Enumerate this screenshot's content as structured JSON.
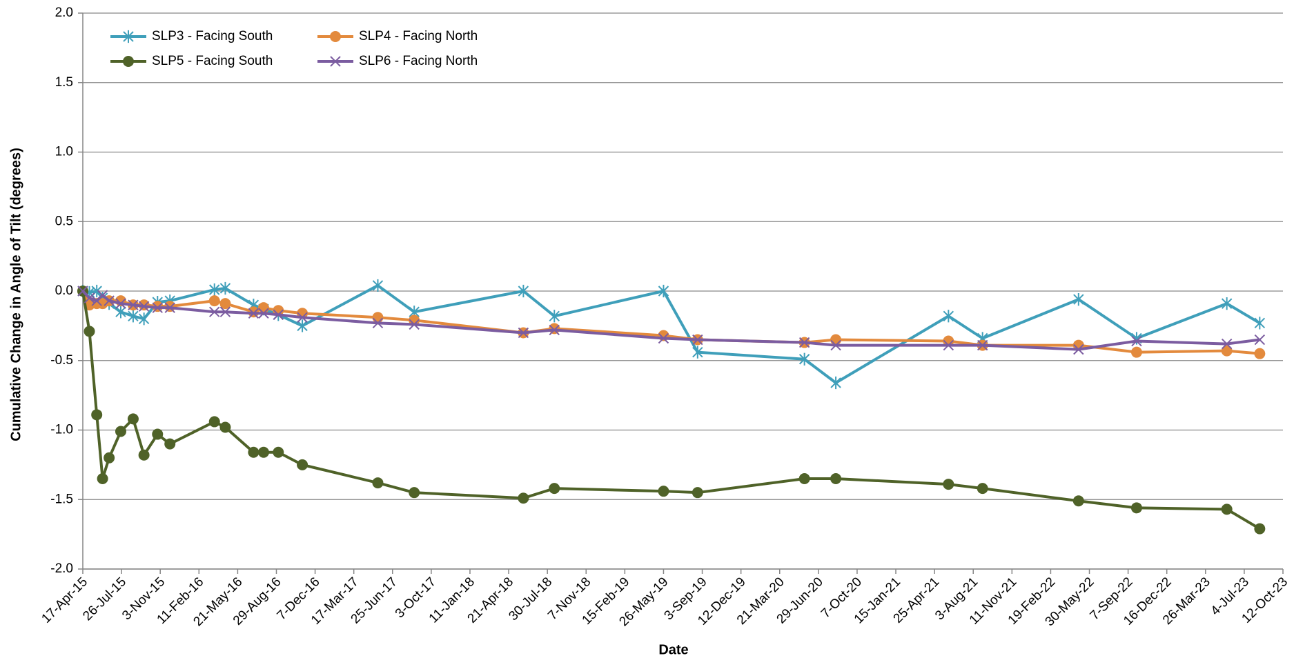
{
  "chart_data": {
    "type": "line",
    "xlabel": "Date",
    "ylabel": "Cumulative Change in Angle of Tilt (degrees)",
    "x": [
      "2015-04-17",
      "2015-05-04",
      "2015-05-23",
      "2015-06-07",
      "2015-06-24",
      "2015-07-24",
      "2015-08-25",
      "2015-09-22",
      "2015-10-27",
      "2015-11-28",
      "2016-03-22",
      "2016-04-19",
      "2016-07-01",
      "2016-07-27",
      "2016-09-03",
      "2016-11-04",
      "2017-05-18",
      "2017-08-20",
      "2018-05-29",
      "2018-08-17",
      "2019-05-26",
      "2019-08-22",
      "2020-05-24",
      "2020-08-13",
      "2021-05-31",
      "2021-08-27",
      "2022-05-02",
      "2022-09-29",
      "2023-05-20",
      "2023-08-13"
    ],
    "series": [
      {
        "name": "SLP3 - Facing South",
        "color": "#3f9fba",
        "marker": "star",
        "values": [
          0.0,
          -0.01,
          0.0,
          -0.05,
          -0.09,
          -0.15,
          -0.18,
          -0.2,
          -0.08,
          -0.07,
          0.01,
          0.02,
          -0.1,
          -0.13,
          -0.17,
          -0.25,
          0.04,
          -0.15,
          0.0,
          -0.18,
          0.0,
          -0.44,
          -0.49,
          -0.66,
          -0.18,
          -0.34,
          -0.06,
          -0.34,
          -0.09,
          -0.23
        ]
      },
      {
        "name": "SLP4 - Facing North",
        "color": "#e38a3d",
        "marker": "circle",
        "values": [
          0.0,
          -0.1,
          -0.09,
          -0.09,
          -0.07,
          -0.07,
          -0.1,
          -0.1,
          -0.11,
          -0.11,
          -0.07,
          -0.09,
          -0.15,
          -0.12,
          -0.14,
          -0.16,
          -0.19,
          -0.21,
          -0.3,
          -0.27,
          -0.32,
          -0.35,
          -0.37,
          -0.35,
          -0.36,
          -0.39,
          -0.39,
          -0.44,
          -0.43,
          -0.45
        ]
      },
      {
        "name": "SLP5 - Facing South",
        "color": "#4f6228",
        "marker": "circle",
        "values": [
          0.0,
          -0.29,
          -0.89,
          -1.35,
          -1.2,
          -1.01,
          -0.92,
          -1.18,
          -1.03,
          -1.1,
          -0.94,
          -0.98,
          -1.16,
          -1.16,
          -1.16,
          -1.25,
          -1.38,
          -1.45,
          -1.49,
          -1.42,
          -1.44,
          -1.45,
          -1.35,
          -1.35,
          -1.39,
          -1.42,
          -1.51,
          -1.56,
          -1.57,
          -1.71
        ]
      },
      {
        "name": "SLP6 - Facing North",
        "color": "#7b5ca0",
        "marker": "x",
        "values": [
          0.0,
          -0.05,
          -0.07,
          -0.03,
          -0.07,
          -0.09,
          -0.1,
          -0.11,
          -0.12,
          -0.12,
          -0.15,
          -0.15,
          -0.16,
          -0.16,
          -0.17,
          -0.19,
          -0.23,
          -0.24,
          -0.3,
          -0.28,
          -0.34,
          -0.35,
          -0.37,
          -0.39,
          -0.39,
          -0.39,
          -0.42,
          -0.36,
          -0.38,
          -0.35
        ]
      }
    ],
    "xlim": [
      "2015-04-17",
      "2023-10-12"
    ],
    "xticks": [
      {
        "value": "2015-04-17",
        "label": "17-Apr-15"
      },
      {
        "value": "2015-07-26",
        "label": "26-Jul-15"
      },
      {
        "value": "2015-11-03",
        "label": "3-Nov-15"
      },
      {
        "value": "2016-02-11",
        "label": "11-Feb-16"
      },
      {
        "value": "2016-05-21",
        "label": "21-May-16"
      },
      {
        "value": "2016-08-29",
        "label": "29-Aug-16"
      },
      {
        "value": "2016-12-07",
        "label": "7-Dec-16"
      },
      {
        "value": "2017-03-17",
        "label": "17-Mar-17"
      },
      {
        "value": "2017-06-25",
        "label": "25-Jun-17"
      },
      {
        "value": "2017-10-03",
        "label": "3-Oct-17"
      },
      {
        "value": "2018-01-11",
        "label": "11-Jan-18"
      },
      {
        "value": "2018-04-21",
        "label": "21-Apr-18"
      },
      {
        "value": "2018-07-30",
        "label": "30-Jul-18"
      },
      {
        "value": "2018-11-07",
        "label": "7-Nov-18"
      },
      {
        "value": "2019-02-15",
        "label": "15-Feb-19"
      },
      {
        "value": "2019-05-26",
        "label": "26-May-19"
      },
      {
        "value": "2019-09-03",
        "label": "3-Sep-19"
      },
      {
        "value": "2019-12-12",
        "label": "12-Dec-19"
      },
      {
        "value": "2020-03-21",
        "label": "21-Mar-20"
      },
      {
        "value": "2020-06-29",
        "label": "29-Jun-20"
      },
      {
        "value": "2020-10-07",
        "label": "7-Oct-20"
      },
      {
        "value": "2021-01-15",
        "label": "15-Jan-21"
      },
      {
        "value": "2021-04-25",
        "label": "25-Apr-21"
      },
      {
        "value": "2021-08-03",
        "label": "3-Aug-21"
      },
      {
        "value": "2021-11-11",
        "label": "11-Nov-21"
      },
      {
        "value": "2022-02-19",
        "label": "19-Feb-22"
      },
      {
        "value": "2022-05-30",
        "label": "30-May-22"
      },
      {
        "value": "2022-09-07",
        "label": "7-Sep-22"
      },
      {
        "value": "2022-12-16",
        "label": "16-Dec-22"
      },
      {
        "value": "2023-03-26",
        "label": "26-Mar-23"
      },
      {
        "value": "2023-07-04",
        "label": "4-Jul-23"
      },
      {
        "value": "2023-10-12",
        "label": "12-Oct-23"
      }
    ],
    "ylim": [
      -2,
      2
    ],
    "yticks": [
      {
        "value": 2,
        "label": "2.0"
      },
      1.5,
      {
        "value": 1,
        "label": "1.0"
      },
      0.5,
      {
        "value": 0,
        "label": "0.0"
      },
      -0.5,
      {
        "value": -1,
        "label": "-1.0"
      },
      -1.5,
      {
        "value": -2,
        "label": "-2.0"
      }
    ],
    "grid": true,
    "legend": "upper left"
  }
}
